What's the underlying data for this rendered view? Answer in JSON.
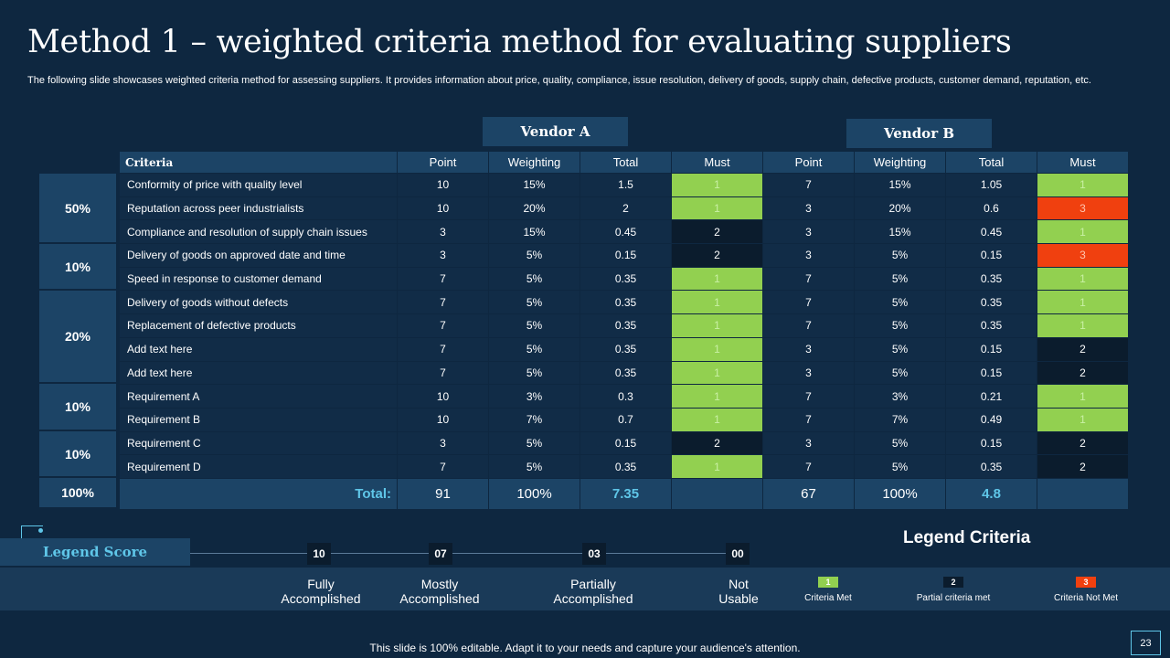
{
  "title": "Method 1 – weighted criteria method for evaluating suppliers",
  "subtitle": "The following slide showcases weighted criteria method for assessing suppliers. It provides information about price, quality, compliance, issue resolution, delivery of goods, supply chain, defective products, customer demand, reputation, etc.",
  "vendors": {
    "a": "Vendor A",
    "b": "Vendor B"
  },
  "headers": [
    "Criteria",
    "Point",
    "Weighting",
    "Total",
    "Must",
    "Point",
    "Weighting",
    "Total",
    "Must"
  ],
  "groups": [
    "50%",
    "10%",
    "20%",
    "10%",
    "10%"
  ],
  "rows": [
    [
      "Conformity of price with quality level",
      "10",
      "15%",
      "1.5",
      "1",
      "7",
      "15%",
      "1.05",
      "1"
    ],
    [
      "Reputation across peer industrialists",
      "10",
      "20%",
      "2",
      "1",
      "3",
      "20%",
      "0.6",
      "3"
    ],
    [
      "Compliance and resolution of supply chain issues",
      "3",
      "15%",
      "0.45",
      "2",
      "3",
      "15%",
      "0.45",
      "1"
    ],
    [
      "Delivery of goods on approved date and time",
      "3",
      "5%",
      "0.15",
      "2",
      "3",
      "5%",
      "0.15",
      "3"
    ],
    [
      "Speed in response to customer demand",
      "7",
      "5%",
      "0.35",
      "1",
      "7",
      "5%",
      "0.35",
      "1"
    ],
    [
      "Delivery of goods without defects",
      "7",
      "5%",
      "0.35",
      "1",
      "7",
      "5%",
      "0.35",
      "1"
    ],
    [
      "Replacement of defective products",
      "7",
      "5%",
      "0.35",
      "1",
      "7",
      "5%",
      "0.35",
      "1"
    ],
    [
      "Add text here",
      "7",
      "5%",
      "0.35",
      "1",
      "3",
      "5%",
      "0.15",
      "2"
    ],
    [
      "Add text here",
      "7",
      "5%",
      "0.35",
      "1",
      "3",
      "5%",
      "0.15",
      "2"
    ],
    [
      "Requirement A",
      "10",
      "3%",
      "0.3",
      "1",
      "7",
      "3%",
      "0.21",
      "1"
    ],
    [
      "Requirement B",
      "10",
      "7%",
      "0.7",
      "1",
      "7",
      "7%",
      "0.49",
      "1"
    ],
    [
      "Requirement C",
      "3",
      "5%",
      "0.15",
      "2",
      "3",
      "5%",
      "0.15",
      "2"
    ],
    [
      "Requirement D",
      "7",
      "5%",
      "0.35",
      "1",
      "7",
      "5%",
      "0.35",
      "2"
    ]
  ],
  "totals": {
    "group": "100%",
    "label": "Total:",
    "a_points": "91",
    "a_weighting": "100%",
    "a_total": "7.35",
    "b_points": "67",
    "b_weighting": "100%",
    "b_total": "4.8"
  },
  "legend_score": {
    "title": "Legend Score",
    "items": [
      {
        "value": "10",
        "line1": "Fully",
        "line2": "Accomplished"
      },
      {
        "value": "07",
        "line1": "Mostly",
        "line2": "Accomplished"
      },
      {
        "value": "03",
        "line1": "Partially",
        "line2": "Accomplished"
      },
      {
        "value": "00",
        "line1": "Not",
        "line2": "Usable"
      }
    ]
  },
  "legend_criteria": {
    "title": "Legend Criteria",
    "items": [
      {
        "value": "1",
        "label": "Criteria Met"
      },
      {
        "value": "2",
        "label": "Partial criteria met"
      },
      {
        "value": "3",
        "label": "Criteria Not Met"
      }
    ]
  },
  "colors": {
    "background": "#0e2740",
    "header": "#1c4466",
    "met": "#92d050",
    "partial": "#0b1c2d",
    "not_met": "#f0400f",
    "accent": "#5fc6e8"
  },
  "footer": "This slide is 100% editable. Adapt it to your needs and capture your audience's attention.",
  "page_number": "23"
}
